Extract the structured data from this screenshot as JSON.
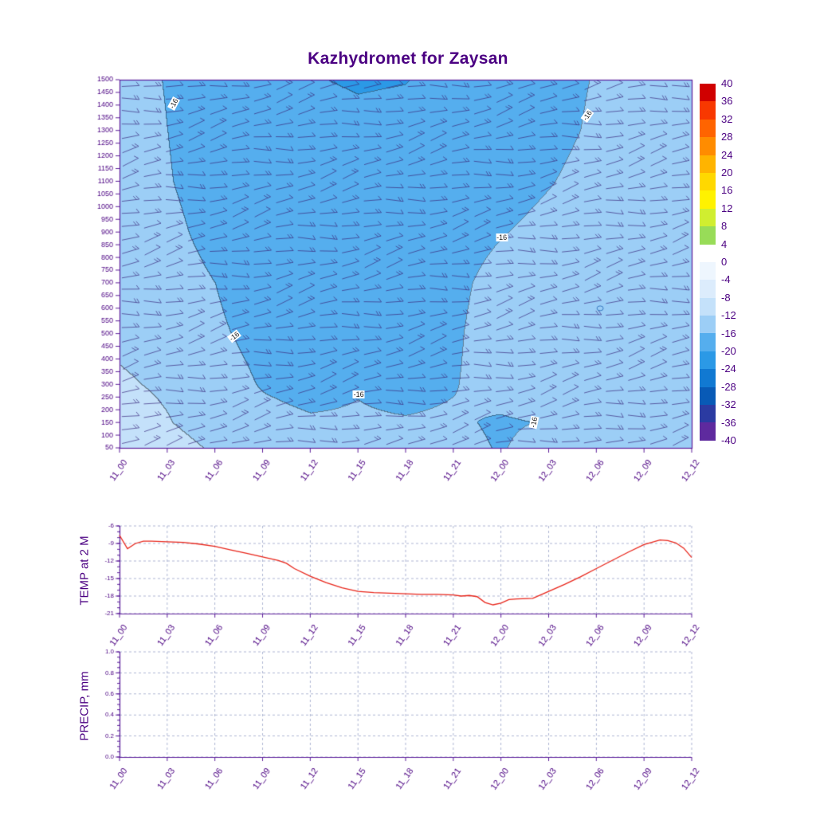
{
  "title": "Kazhydromet for Zaysan",
  "colors": {
    "axis_line": "#5c1d9a",
    "tick_text": "#4b0082",
    "title_text": "#4b0082",
    "grid_dash": "#9aa4c8",
    "temp_line": "#e8251a",
    "barb": "#3b2b80",
    "contour_label_text": "#1a1a1a"
  },
  "time_labels": [
    "11_00",
    "11_03",
    "11_06",
    "11_09",
    "11_12",
    "11_15",
    "11_18",
    "11_21",
    "12_00",
    "12_03",
    "12_06",
    "12_09",
    "12_12"
  ],
  "x_tick_hours": [
    0,
    3,
    6,
    9,
    12,
    15,
    18,
    21,
    24,
    27,
    30,
    33,
    36
  ],
  "colorbar": {
    "levels": [
      40,
      36,
      32,
      28,
      24,
      20,
      16,
      12,
      8,
      4,
      0,
      -4,
      -8,
      -12,
      -16,
      -20,
      -24,
      -28,
      -32,
      -36,
      -40
    ],
    "colors": [
      "#d00000",
      "#f83800",
      "#ff6400",
      "#ff8c00",
      "#ffb400",
      "#ffd800",
      "#fff200",
      "#d0ee30",
      "#98dc58",
      "#ffffff",
      "#eef6fe",
      "#dcecfc",
      "#c4e1fa",
      "#9ccef6",
      "#55aeee",
      "#2b99e6",
      "#1179d2",
      "#085ab6",
      "#2b3ba2",
      "#5e2a9e"
    ]
  },
  "chart_data": [
    {
      "type": "heatmap",
      "name": "temperature-height cross section with wind barbs",
      "title": "Kazhydromet for Zaysan",
      "x_labels": [
        "11_00",
        "11_03",
        "11_06",
        "11_09",
        "11_12",
        "11_15",
        "11_18",
        "11_21",
        "12_00",
        "12_03",
        "12_06",
        "12_09",
        "12_12"
      ],
      "y_ticks": [
        1500,
        1450,
        1400,
        1350,
        1300,
        1250,
        1200,
        1150,
        1100,
        1050,
        1000,
        950,
        900,
        850,
        800,
        750,
        700,
        650,
        600,
        550,
        500,
        450,
        400,
        350,
        300,
        250,
        200,
        150,
        100,
        50
      ],
      "y_range": [
        50,
        1500
      ],
      "contour_interval": 4,
      "levels": [
        40,
        36,
        32,
        28,
        24,
        20,
        16,
        12,
        8,
        4,
        0,
        -4,
        -8,
        -12,
        -16,
        -20,
        -24,
        -28,
        -32,
        -36,
        -40
      ],
      "field": {
        "units": "degC",
        "times_hours": [
          0,
          3,
          6,
          9,
          12,
          15,
          18,
          21,
          24,
          27,
          30,
          33,
          36
        ],
        "heights": [
          50,
          150,
          300,
          500,
          700,
          900,
          1100,
          1300,
          1500
        ],
        "values": [
          [
            -9.0,
            -10.5,
            -12.5,
            -14.0,
            -15.0,
            -15.6,
            -15.5,
            -15.2,
            -16.2,
            -14.8,
            -12.8,
            -12.4,
            -12.2
          ],
          [
            -10.0,
            -11.8,
            -13.8,
            -15.2,
            -15.7,
            -15.7,
            -15.8,
            -15.6,
            -16.4,
            -15.8,
            -13.2,
            -12.7,
            -12.5
          ],
          [
            -11.5,
            -12.6,
            -14.8,
            -16.2,
            -16.9,
            -16.2,
            -16.9,
            -16.2,
            -14.5,
            -13.4,
            -12.9,
            -12.6,
            -12.5
          ],
          [
            -12.8,
            -13.6,
            -15.6,
            -16.8,
            -17.8,
            -17.6,
            -17.5,
            -16.5,
            -14.2,
            -13.2,
            -12.8,
            -12.5,
            -12.4
          ],
          [
            -13.2,
            -14.6,
            -16.0,
            -17.5,
            -18.0,
            -18.0,
            -17.8,
            -16.8,
            -14.8,
            -13.8,
            -13.2,
            -12.8,
            -12.6
          ],
          [
            -13.8,
            -15.2,
            -17.0,
            -17.8,
            -18.2,
            -18.4,
            -18.2,
            -17.5,
            -16.2,
            -15.0,
            -14.2,
            -13.6,
            -13.4
          ],
          [
            -14.0,
            -15.8,
            -17.5,
            -18.0,
            -18.5,
            -18.8,
            -18.5,
            -18.2,
            -17.5,
            -16.2,
            -14.8,
            -14.0,
            -13.8
          ],
          [
            -14.2,
            -16.0,
            -17.8,
            -18.3,
            -18.8,
            -19.2,
            -18.9,
            -18.5,
            -18.0,
            -17.0,
            -15.5,
            -14.5,
            -14.0
          ],
          [
            -14.5,
            -16.2,
            -18.0,
            -18.6,
            -19.8,
            -20.3,
            -20.1,
            -18.8,
            -18.2,
            -17.2,
            -15.8,
            -14.8,
            -14.2
          ]
        ]
      },
      "contour_labels": [
        {
          "text": "-16",
          "xf": 0.095,
          "yf": 0.065,
          "rot": -62
        },
        {
          "text": "-16",
          "xf": 0.817,
          "yf": 0.097,
          "rot": -55
        },
        {
          "text": "-16",
          "xf": 0.668,
          "yf": 0.428,
          "rot": 0
        },
        {
          "text": "-16",
          "xf": 0.2,
          "yf": 0.697,
          "rot": -38
        },
        {
          "text": "-16",
          "xf": 0.418,
          "yf": 0.855,
          "rot": 0
        },
        {
          "text": "-16",
          "xf": 0.724,
          "yf": 0.93,
          "rot": -78
        }
      ],
      "annotations": [
        {
          "type": "circle",
          "xf": 0.84,
          "yf": 0.621,
          "r": 4
        }
      ],
      "barbs": {
        "rows": 29,
        "cols": 26
      }
    },
    {
      "type": "line",
      "name": "TEMP at 2 M",
      "ylabel": "TEMP at 2 M",
      "ylim": [
        -21,
        -6
      ],
      "yticks": [
        -6,
        -9,
        -12,
        -15,
        -18,
        -21
      ],
      "minor_step": 1,
      "points": [
        [
          0,
          -7.6
        ],
        [
          0.5,
          -9.9
        ],
        [
          1,
          -9.0
        ],
        [
          1.5,
          -8.6
        ],
        [
          2,
          -8.6
        ],
        [
          3,
          -8.7
        ],
        [
          4,
          -8.8
        ],
        [
          5,
          -9.1
        ],
        [
          6,
          -9.5
        ],
        [
          7,
          -10.1
        ],
        [
          8,
          -10.7
        ],
        [
          9,
          -11.3
        ],
        [
          10,
          -11.9
        ],
        [
          10.5,
          -12.4
        ],
        [
          11,
          -13.3
        ],
        [
          12,
          -14.6
        ],
        [
          13,
          -15.7
        ],
        [
          14,
          -16.6
        ],
        [
          15,
          -17.2
        ],
        [
          16,
          -17.4
        ],
        [
          17,
          -17.5
        ],
        [
          18,
          -17.6
        ],
        [
          19,
          -17.7
        ],
        [
          20,
          -17.7
        ],
        [
          21,
          -17.8
        ],
        [
          21.5,
          -18.0
        ],
        [
          22,
          -17.9
        ],
        [
          22.5,
          -18.1
        ],
        [
          23,
          -19.1
        ],
        [
          23.5,
          -19.5
        ],
        [
          24,
          -19.2
        ],
        [
          24.5,
          -18.6
        ],
        [
          25,
          -18.5
        ],
        [
          26,
          -18.4
        ],
        [
          27,
          -17.2
        ],
        [
          28,
          -16.0
        ],
        [
          29,
          -14.7
        ],
        [
          30,
          -13.3
        ],
        [
          31,
          -11.9
        ],
        [
          32,
          -10.5
        ],
        [
          33,
          -9.2
        ],
        [
          34,
          -8.4
        ],
        [
          34.5,
          -8.5
        ],
        [
          35,
          -8.9
        ],
        [
          35.5,
          -9.8
        ],
        [
          36,
          -11.4
        ]
      ]
    },
    {
      "type": "line",
      "name": "PRECIP, mm",
      "ylabel": "PRECIP, mm",
      "ylim": [
        0,
        1
      ],
      "yticks": [
        1.0,
        0.8,
        0.6,
        0.4,
        0.2,
        0.0
      ],
      "minor_step": 0.05,
      "points": []
    }
  ]
}
